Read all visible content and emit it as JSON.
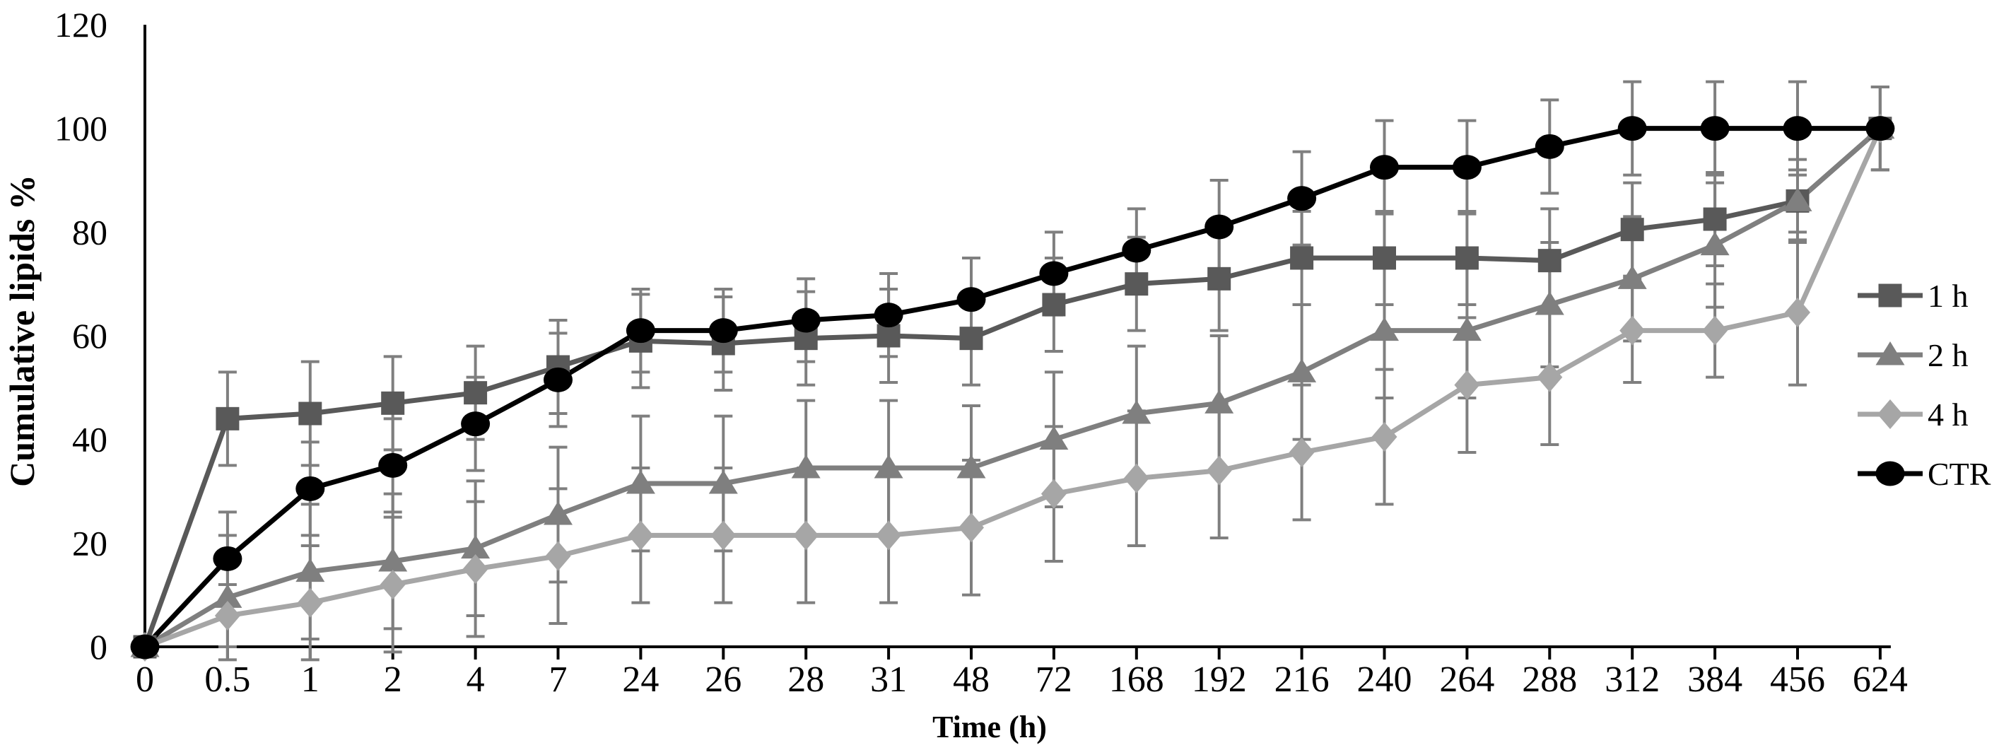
{
  "chart_data": {
    "type": "line",
    "title": "",
    "xlabel": "Time (h)",
    "ylabel": "Cumulative lipids %",
    "ylim": [
      0,
      120
    ],
    "yticks": [
      0,
      20,
      40,
      60,
      80,
      100,
      120
    ],
    "grid": false,
    "legend_position": "right",
    "background_color": "#ffffff",
    "axis_color": "#000000",
    "error_bar_color": "#7f7f7f",
    "categories": [
      "0",
      "0.5",
      "1",
      "2",
      "4",
      "7",
      "24",
      "26",
      "28",
      "31",
      "48",
      "72",
      "168",
      "192",
      "216",
      "240",
      "264",
      "288",
      "312",
      "384",
      "456",
      "624"
    ],
    "series": [
      {
        "name": "1 h",
        "marker": "square",
        "color": "#595959",
        "values": [
          0,
          44,
          45,
          47,
          49,
          54,
          59,
          58.5,
          59.5,
          60,
          59.5,
          66,
          70,
          71,
          75,
          75,
          75,
          74.5,
          80.5,
          82.5,
          86,
          100
        ],
        "err": [
          0,
          9,
          10,
          9,
          9,
          9,
          9,
          9,
          9,
          9,
          9,
          9,
          9,
          10,
          9,
          9,
          9,
          10,
          9,
          9,
          6,
          8
        ]
      },
      {
        "name": "2 h",
        "marker": "triangle",
        "color": "#7f7f7f",
        "values": [
          0,
          9.5,
          14.5,
          16.5,
          19,
          25.5,
          31.5,
          31.5,
          34.5,
          34.5,
          34.5,
          40,
          45,
          47,
          53,
          61,
          61,
          66,
          71,
          77.5,
          86,
          100
        ],
        "err": [
          0,
          12,
          13,
          13,
          13,
          13,
          13,
          13,
          13,
          13,
          12,
          13,
          13,
          13,
          13,
          13,
          13,
          12,
          12,
          12,
          8,
          8
        ]
      },
      {
        "name": "4 h",
        "marker": "diamond",
        "color": "#a6a6a6",
        "values": [
          0,
          6,
          8.5,
          12,
          15,
          17.5,
          21.5,
          21.5,
          21.5,
          21.5,
          23,
          29.5,
          32.5,
          34,
          37.5,
          40.5,
          50.5,
          52,
          61,
          61,
          64.5,
          100
        ],
        "err": [
          0,
          6,
          11,
          13,
          13,
          13,
          13,
          13,
          13,
          13,
          13,
          13,
          13,
          13,
          13,
          13,
          13,
          13,
          10,
          9,
          14,
          8
        ]
      },
      {
        "name": "CTR",
        "marker": "circle",
        "color": "#000000",
        "values": [
          0,
          17,
          30.5,
          35,
          43,
          51.5,
          61,
          61,
          63,
          64,
          67,
          72,
          76.5,
          81,
          86.5,
          92.5,
          92.5,
          96.5,
          100,
          100,
          100,
          100
        ],
        "err": [
          0,
          9,
          9,
          9,
          9,
          9,
          8,
          8,
          8,
          8,
          8,
          8,
          8,
          9,
          9,
          9,
          9,
          9,
          9,
          9,
          9,
          8
        ]
      }
    ]
  }
}
